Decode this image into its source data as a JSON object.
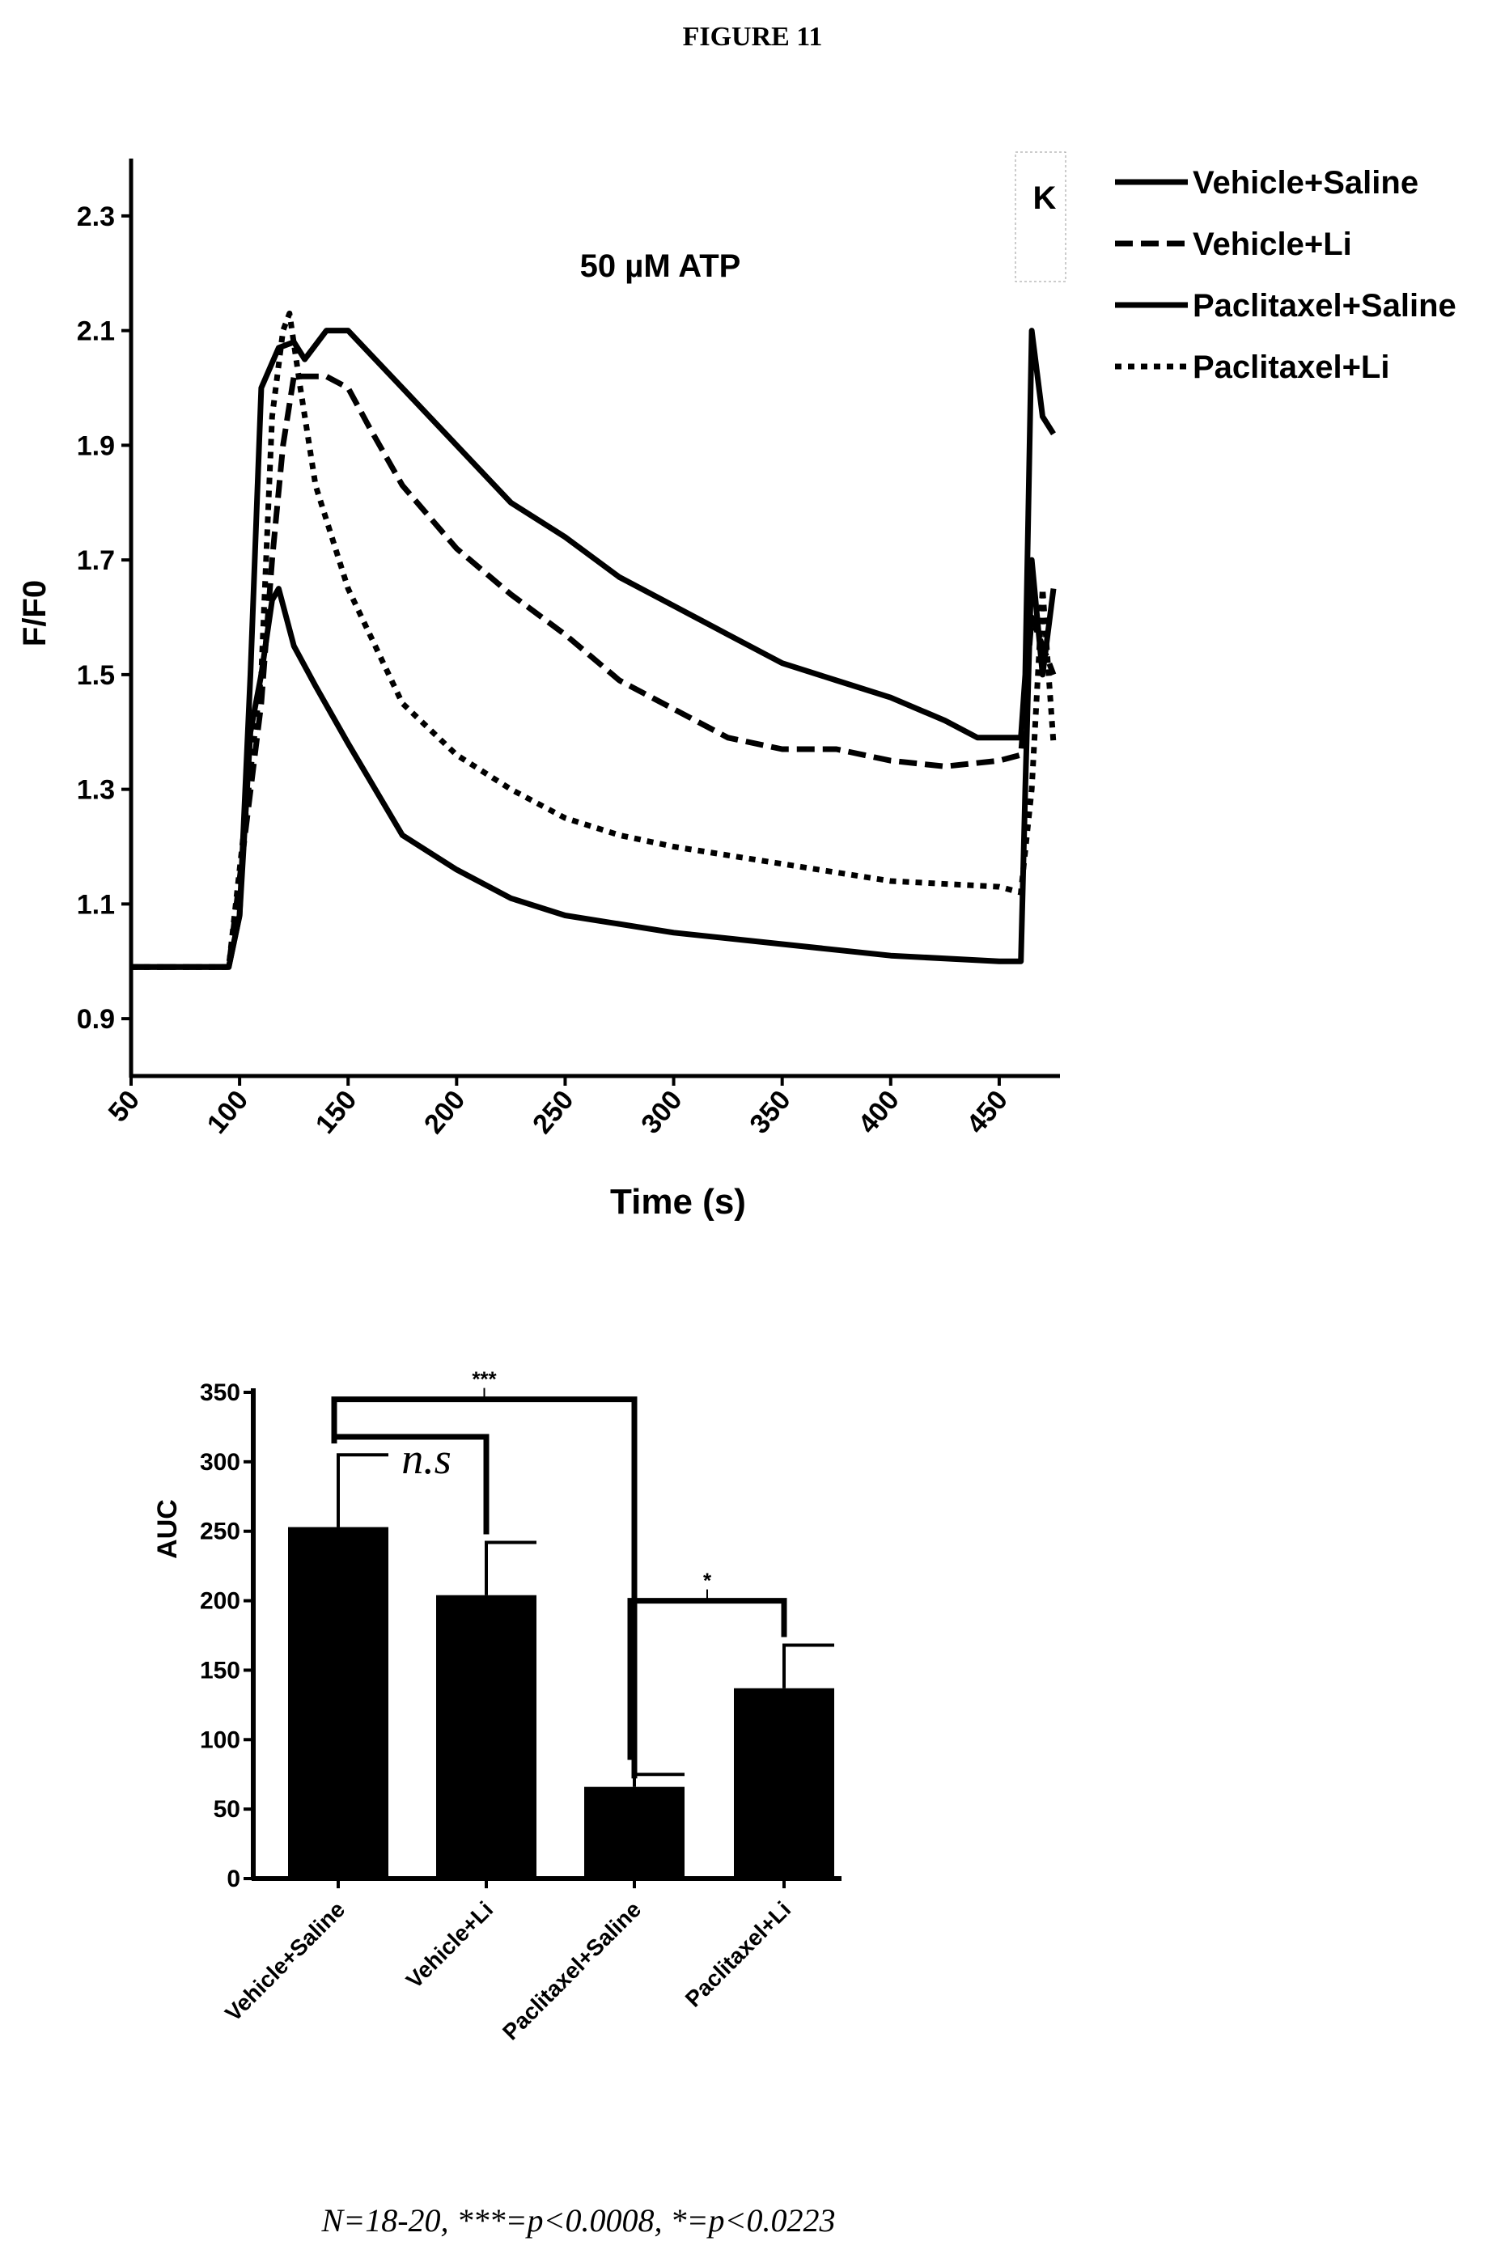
{
  "figure_title": "FIGURE 11",
  "footnote": "N=18-20, ***=p<0.0008, *=p<0.0223",
  "chart_data": [
    {
      "type": "line",
      "title": "50 µM ATP",
      "annotation": "K",
      "xlabel": "Time (s)",
      "ylabel": "F/F0",
      "xlim": [
        50,
        478
      ],
      "ylim": [
        0.8,
        2.4
      ],
      "xticks": [
        50,
        100,
        150,
        200,
        250,
        300,
        350,
        400,
        450
      ],
      "yticks": [
        0.9,
        1.1,
        1.3,
        1.5,
        1.7,
        1.9,
        2.1,
        2.3
      ],
      "legend_position": "top-right",
      "series": [
        {
          "name": "Vehicle+Saline",
          "style": "solid",
          "x": [
            50,
            95,
            100,
            105,
            110,
            118,
            125,
            130,
            140,
            150,
            160,
            175,
            200,
            225,
            250,
            275,
            300,
            325,
            350,
            375,
            400,
            425,
            440,
            460,
            462,
            465,
            470,
            475
          ],
          "y": [
            0.99,
            0.99,
            1.08,
            1.5,
            2.0,
            2.07,
            2.08,
            2.05,
            2.1,
            2.1,
            2.06,
            2.0,
            1.9,
            1.8,
            1.74,
            1.67,
            1.62,
            1.57,
            1.52,
            1.49,
            1.46,
            1.42,
            1.39,
            1.39,
            1.5,
            2.1,
            1.95,
            1.92
          ]
        },
        {
          "name": "Vehicle+Li",
          "style": "dashed",
          "x": [
            50,
            95,
            110,
            115,
            120,
            125,
            130,
            140,
            150,
            160,
            175,
            200,
            225,
            250,
            275,
            300,
            325,
            350,
            375,
            400,
            425,
            450,
            460,
            465,
            470,
            475
          ],
          "y": [
            0.99,
            0.99,
            1.45,
            1.7,
            1.9,
            2.02,
            2.02,
            2.02,
            2.0,
            1.93,
            1.83,
            1.72,
            1.64,
            1.57,
            1.49,
            1.44,
            1.39,
            1.37,
            1.37,
            1.35,
            1.34,
            1.35,
            1.36,
            1.6,
            1.55,
            1.5
          ]
        },
        {
          "name": "Paclitaxel+Saline",
          "style": "solid",
          "x": [
            50,
            95,
            100,
            105,
            110,
            115,
            118,
            125,
            135,
            150,
            175,
            200,
            225,
            250,
            300,
            350,
            400,
            450,
            460,
            462,
            465,
            470,
            475
          ],
          "y": [
            0.99,
            0.99,
            1.08,
            1.4,
            1.5,
            1.63,
            1.65,
            1.55,
            1.48,
            1.38,
            1.22,
            1.16,
            1.11,
            1.08,
            1.05,
            1.03,
            1.01,
            1.0,
            1.0,
            1.3,
            1.7,
            1.5,
            1.65
          ]
        },
        {
          "name": "Paclitaxel+Li",
          "style": "dotted",
          "x": [
            50,
            95,
            110,
            115,
            120,
            123,
            128,
            135,
            150,
            175,
            200,
            225,
            250,
            275,
            300,
            350,
            400,
            450,
            460,
            465,
            470,
            475
          ],
          "y": [
            0.99,
            0.99,
            1.5,
            1.95,
            2.1,
            2.13,
            2.0,
            1.83,
            1.65,
            1.45,
            1.36,
            1.3,
            1.25,
            1.22,
            1.2,
            1.17,
            1.14,
            1.13,
            1.12,
            1.3,
            1.65,
            1.38
          ]
        }
      ]
    },
    {
      "type": "bar",
      "ylabel": "AUC",
      "ylim": [
        0,
        350
      ],
      "yticks": [
        0,
        50,
        100,
        150,
        200,
        250,
        300,
        350
      ],
      "categories": [
        "Vehicle+Saline",
        "Vehicle+Li",
        "Paclitaxel+Saline",
        "Paclitaxel+Li"
      ],
      "values": [
        253,
        204,
        66,
        137
      ],
      "errors": [
        52,
        38,
        9,
        31
      ],
      "brackets": [
        {
          "from": 0,
          "to": 2,
          "level": 345,
          "label": "***"
        },
        {
          "from": 0,
          "to": 1,
          "level": 318,
          "label": "n.s"
        },
        {
          "from": 2,
          "to": 3,
          "level": 200,
          "label": "*"
        }
      ]
    }
  ]
}
